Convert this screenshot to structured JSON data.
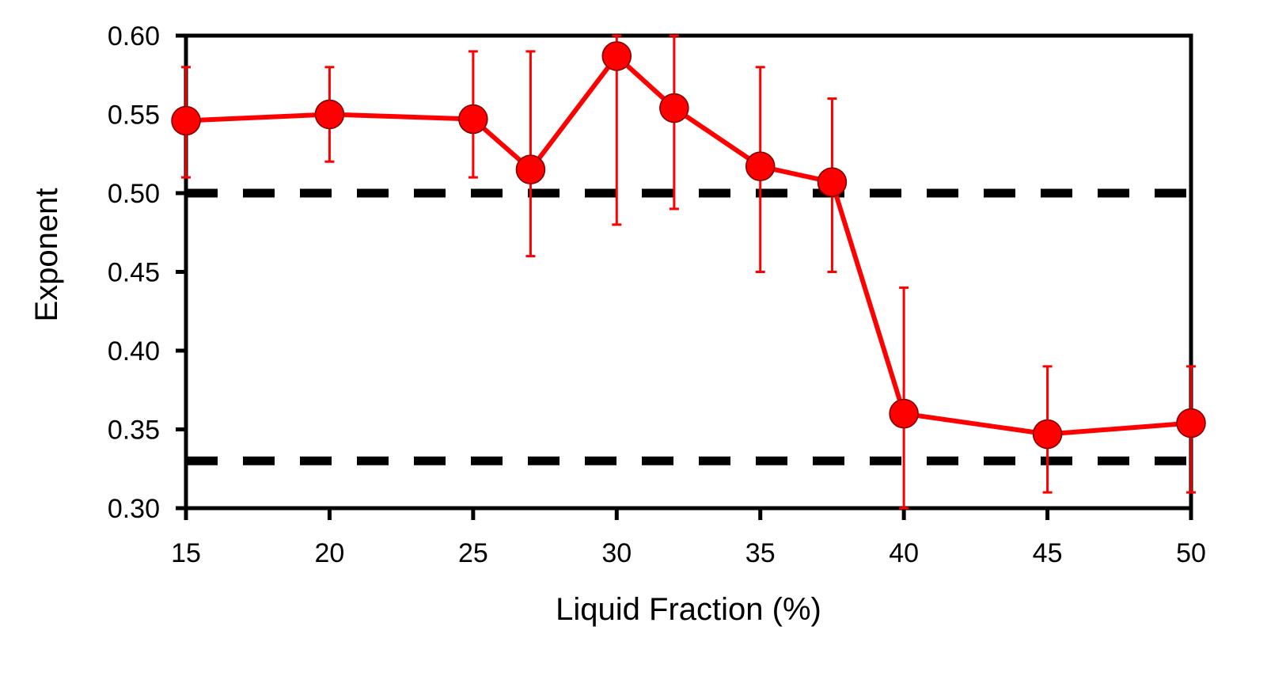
{
  "chart_data": {
    "type": "line",
    "xlabel": "Liquid Fraction (%)",
    "ylabel": "Exponent",
    "xlim": [
      15,
      50
    ],
    "ylim": [
      0.3,
      0.6
    ],
    "x_ticks": [
      15,
      20,
      25,
      30,
      35,
      40,
      45,
      50
    ],
    "y_ticks": [
      0.3,
      0.35,
      0.4,
      0.45,
      0.5,
      0.55,
      0.6
    ],
    "x_tick_labels": [
      "15",
      "20",
      "25",
      "30",
      "35",
      "40",
      "45",
      "50"
    ],
    "y_tick_labels": [
      "0.30",
      "0.35",
      "0.40",
      "0.45",
      "0.50",
      "0.55",
      "0.60"
    ],
    "grid": false,
    "legend": "none",
    "series": [
      {
        "color": "#ff0000",
        "marker": "circle",
        "points": [
          {
            "x": 15,
            "y": 0.546,
            "err_low": 0.51,
            "err_high": 0.58
          },
          {
            "x": 20,
            "y": 0.55,
            "err_low": 0.52,
            "err_high": 0.58
          },
          {
            "x": 25,
            "y": 0.547,
            "err_low": 0.51,
            "err_high": 0.59
          },
          {
            "x": 27,
            "y": 0.515,
            "err_low": 0.46,
            "err_high": 0.59
          },
          {
            "x": 30,
            "y": 0.587,
            "err_low": 0.48,
            "err_high": 0.6
          },
          {
            "x": 32,
            "y": 0.554,
            "err_low": 0.49,
            "err_high": 0.6
          },
          {
            "x": 35,
            "y": 0.517,
            "err_low": 0.45,
            "err_high": 0.58
          },
          {
            "x": 37.5,
            "y": 0.507,
            "err_low": 0.45,
            "err_high": 0.56
          },
          {
            "x": 40,
            "y": 0.36,
            "err_low": 0.3,
            "err_high": 0.44
          },
          {
            "x": 45,
            "y": 0.347,
            "err_low": 0.31,
            "err_high": 0.39
          },
          {
            "x": 50,
            "y": 0.354,
            "err_low": 0.31,
            "err_high": 0.39
          }
        ]
      }
    ],
    "reference_lines": [
      {
        "y": 0.5,
        "style": "dashed",
        "color": "#000000"
      },
      {
        "y": 0.33,
        "style": "dashed",
        "color": "#000000"
      }
    ]
  }
}
